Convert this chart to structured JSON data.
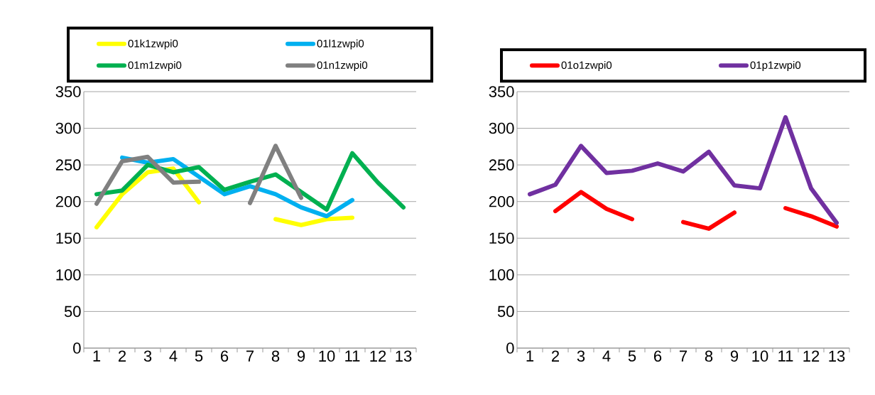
{
  "chart_data": [
    {
      "type": "line",
      "categories": [
        "1",
        "2",
        "3",
        "4",
        "5",
        "6",
        "7",
        "8",
        "9",
        "10",
        "11",
        "12",
        "13"
      ],
      "ylim": [
        0,
        350
      ],
      "yticks": [
        0,
        50,
        100,
        150,
        200,
        250,
        300,
        350
      ],
      "grid": "y",
      "legend": "top",
      "series": [
        {
          "name": "01k1zwpi0",
          "color": "#ffff00",
          "values": [
            165,
            210,
            240,
            245,
            199,
            null,
            null,
            176,
            168,
            176,
            178,
            null,
            null
          ]
        },
        {
          "name": "01l1zwpi0",
          "color": "#00b0f0",
          "values": [
            null,
            260,
            253,
            258,
            234,
            210,
            221,
            210,
            192,
            180,
            202,
            null,
            null
          ]
        },
        {
          "name": "01m1zwpi0",
          "color": "#00b050",
          "values": [
            210,
            215,
            250,
            240,
            247,
            216,
            227,
            237,
            213,
            189,
            266,
            226,
            192
          ]
        },
        {
          "name": "01n1zwpi0",
          "color": "#808080",
          "values": [
            197,
            255,
            261,
            226,
            227,
            null,
            198,
            276,
            205,
            null,
            null,
            null,
            null
          ]
        }
      ]
    },
    {
      "type": "line",
      "categories": [
        "1",
        "2",
        "3",
        "4",
        "5",
        "6",
        "7",
        "8",
        "9",
        "10",
        "11",
        "12",
        "13"
      ],
      "ylim": [
        0,
        350
      ],
      "yticks": [
        0,
        50,
        100,
        150,
        200,
        250,
        300,
        350
      ],
      "grid": "y",
      "legend": "top",
      "series": [
        {
          "name": "01o1zwpi0",
          "color": "#ff0000",
          "values": [
            null,
            187,
            213,
            190,
            176,
            null,
            172,
            163,
            185,
            null,
            191,
            180,
            166
          ]
        },
        {
          "name": "01p1zwpi0",
          "color": "#7030a0",
          "values": [
            210,
            223,
            276,
            239,
            242,
            252,
            241,
            268,
            222,
            218,
            315,
            218,
            171
          ]
        }
      ]
    }
  ]
}
